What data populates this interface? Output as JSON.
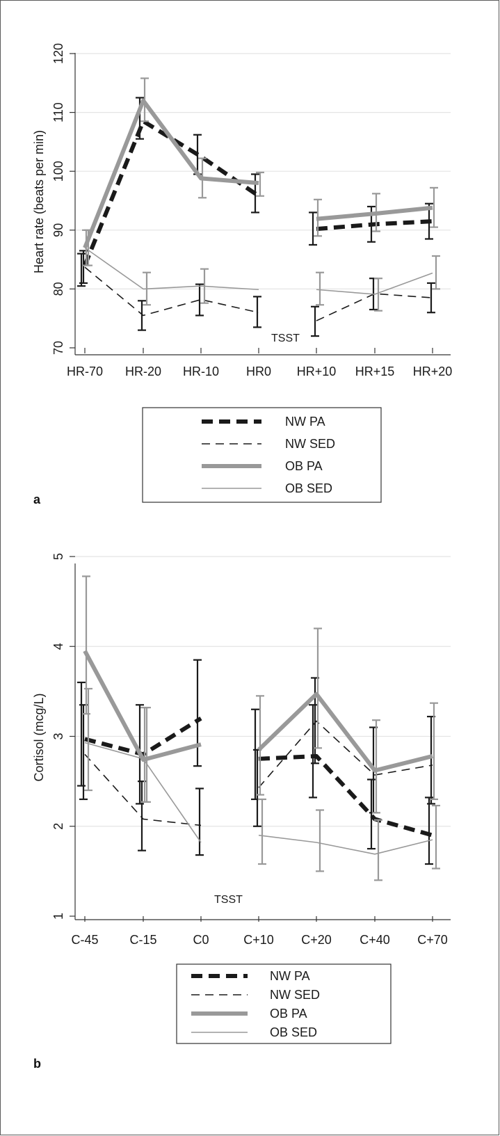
{
  "figure": {
    "panels": [
      "a",
      "b"
    ]
  },
  "chart_data": [
    {
      "type": "line",
      "panel_label": "a",
      "ylabel": "Heart rate (beats per min)",
      "xlabel": "",
      "ylim": [
        70,
        120
      ],
      "yticks": [
        70,
        80,
        90,
        100,
        110,
        120
      ],
      "categories": [
        "HR-70",
        "HR-20",
        "HR-10",
        "HR0",
        "HR+10",
        "HR+15",
        "HR+20"
      ],
      "gap_after_index": 3,
      "annotation": "TSST",
      "grid": true,
      "legend": "bottom",
      "series": [
        {
          "name": "NW PA",
          "style": "thick-dashed",
          "color": "#1a1a1a",
          "values": [
            84,
            108.5,
            102.5,
            95.8,
            90.2,
            91,
            91.5
          ],
          "err": [
            [
              80.5,
              86
            ],
            [
              105.5,
              112.5
            ],
            [
              99.5,
              106.2
            ],
            [
              93,
              99.5
            ],
            [
              87.5,
              93
            ],
            [
              88,
              94
            ],
            [
              88.5,
              94.5
            ]
          ]
        },
        {
          "name": "NW SED",
          "style": "thin-dashed",
          "color": "#1a1a1a",
          "values": [
            83.7,
            75.5,
            78.2,
            76,
            74.6,
            79.2,
            78.5
          ],
          "err": [
            [
              81,
              86.5
            ],
            [
              73,
              78
            ],
            [
              75.5,
              80.8
            ],
            [
              73.5,
              78.7
            ],
            [
              72,
              77
            ],
            [
              76.5,
              81.8
            ],
            [
              76,
              81
            ]
          ]
        },
        {
          "name": "OB PA",
          "style": "thick-solid",
          "color": "#999999",
          "values": [
            87,
            112,
            98.8,
            98,
            91.9,
            92.8,
            93.8
          ],
          "err": [
            [
              84,
              90
            ],
            [
              108.5,
              115.8
            ],
            [
              95.5,
              102.2
            ],
            [
              95.8,
              99.8
            ],
            [
              89,
              95.2
            ],
            [
              89.8,
              96.2
            ],
            [
              90.5,
              97.2
            ]
          ]
        },
        {
          "name": "OB SED",
          "style": "thin-solid",
          "color": "#999999",
          "values": [
            87,
            80,
            80.5,
            79.9,
            79.9,
            79.1,
            82.7
          ],
          "err": [
            [
              84,
              90
            ],
            [
              77.3,
              82.8
            ],
            [
              77.6,
              83.4
            ],
            [
              null,
              null
            ],
            [
              77.3,
              82.8
            ],
            [
              76.3,
              81.8
            ],
            [
              80,
              85.6
            ]
          ]
        }
      ]
    },
    {
      "type": "line",
      "panel_label": "b",
      "ylabel": "Cortisol (mcg/L)",
      "xlabel": "",
      "ylim": [
        1,
        5
      ],
      "yticks": [
        1,
        2,
        3,
        4,
        5
      ],
      "categories": [
        "C-45",
        "C-15",
        "C0",
        "C+10",
        "C+20",
        "C+40",
        "C+70"
      ],
      "gap_after_index": 2,
      "annotation": "TSST",
      "grid": true,
      "legend": "bottom",
      "series": [
        {
          "name": "NW PA",
          "style": "thick-dashed",
          "color": "#1a1a1a",
          "values": [
            2.97,
            2.8,
            3.2,
            2.75,
            2.78,
            2.08,
            1.9
          ],
          "err": [
            [
              2.45,
              3.6
            ],
            [
              2.25,
              3.35
            ],
            [
              2.67,
              3.85
            ],
            [
              2.3,
              3.3
            ],
            [
              2.32,
              3.35
            ],
            [
              1.75,
              2.52
            ],
            [
              1.58,
              2.32
            ]
          ]
        },
        {
          "name": "NW SED",
          "style": "thin-dashed",
          "color": "#1a1a1a",
          "values": [
            2.8,
            2.08,
            2.01,
            2.43,
            3.17,
            2.57,
            2.68
          ],
          "err": [
            [
              2.3,
              3.35
            ],
            [
              1.73,
              2.5
            ],
            [
              1.68,
              2.42
            ],
            [
              2.0,
              2.85
            ],
            [
              2.7,
              3.65
            ],
            [
              2.15,
              3.1
            ],
            [
              2.25,
              3.22
            ]
          ]
        },
        {
          "name": "OB PA",
          "style": "thick-solid",
          "color": "#999999",
          "values": [
            3.95,
            2.74,
            2.91,
            2.85,
            3.47,
            2.62,
            2.78
          ],
          "err": [
            [
              3.25,
              4.78
            ],
            [
              2.27,
              3.32
            ],
            [
              null,
              null
            ],
            [
              2.35,
              3.45
            ],
            [
              2.87,
              4.2
            ],
            [
              2.15,
              3.18
            ],
            [
              2.3,
              3.37
            ]
          ]
        },
        {
          "name": "OB SED",
          "style": "thin-solid",
          "color": "#999999",
          "values": [
            2.93,
            2.75,
            1.82,
            1.9,
            1.82,
            1.69,
            1.85
          ],
          "err": [
            [
              2.4,
              3.53
            ],
            [
              2.27,
              3.32
            ],
            [
              null,
              null
            ],
            [
              1.58,
              2.3
            ],
            [
              1.5,
              2.18
            ],
            [
              1.4,
              2.07
            ],
            [
              1.53,
              2.23
            ]
          ]
        }
      ]
    }
  ]
}
